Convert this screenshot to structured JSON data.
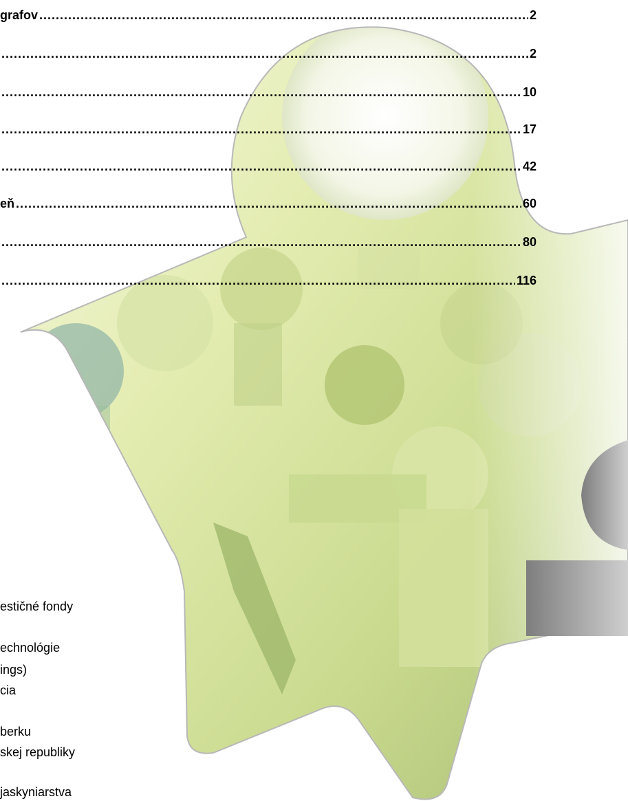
{
  "toc": {
    "entries": [
      {
        "title": "grafov",
        "page": "2"
      },
      {
        "title": "",
        "page": "2"
      },
      {
        "title": "",
        "page": "10"
      },
      {
        "title": "",
        "page": "17"
      },
      {
        "title": "",
        "page": "42"
      },
      {
        "title": "eň",
        "page": "60"
      },
      {
        "title": "",
        "page": "80"
      },
      {
        "title": "",
        "page": "116"
      }
    ]
  },
  "list": {
    "items": [
      "estičné fondy",
      "echnológie",
      "ings)",
      "cia",
      "berku",
      "skej republiky",
      "jaskyniarstva"
    ]
  },
  "colors": {
    "star_light": "#eef3c8",
    "star_mid": "#c8d98c",
    "star_dark": "#8fa664",
    "star_teal": "#7fa6a0",
    "grey_figure": "#8c8c8c"
  }
}
